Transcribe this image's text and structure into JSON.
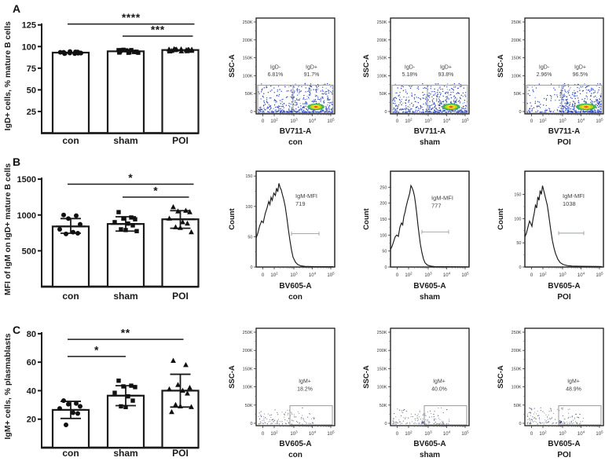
{
  "colors": {
    "axis": "#1a1a1a",
    "bar_fill": "#ffffff",
    "bar_stroke": "#1a1a1a",
    "marker": "#111111",
    "gate": "#9a9a9a",
    "gate_text": "#3f3f3f",
    "hist_line": "#1a1a1a",
    "range_marker": "#9aa0a6",
    "dot_palette": [
      "#2a3fae",
      "#3f5bc9",
      "#6b85dd",
      "#8fa6e8"
    ],
    "sparse_palette": [
      "#9a9a9a",
      "#6a6f85",
      "#3a4a9e"
    ],
    "hot_scatter": [
      "#2a3fae",
      "#2f9fbf",
      "#35b54a",
      "#7cc93c"
    ],
    "hot_rings": [
      "#2fae4e",
      "#b8d514",
      "#f4e11c",
      "#f59a23",
      "#e0301e"
    ]
  },
  "panels": [
    {
      "letter": "A"
    },
    {
      "letter": "B"
    },
    {
      "letter": "C"
    }
  ],
  "chart_data": [
    {
      "id": "A-bar",
      "row": "A",
      "type": "bar",
      "title": "",
      "xlabel": "",
      "ylabel": "IgD+ cells, % mature B cells",
      "categories": [
        "con",
        "sham",
        "POI"
      ],
      "values": [
        93,
        94.5,
        96
      ],
      "markers": [
        "circle",
        "square",
        "triangle"
      ],
      "points_n": [
        14,
        16,
        16
      ],
      "points_spread": [
        [
          91.8,
          94.3
        ],
        [
          92.8,
          96.3
        ],
        [
          94.2,
          97.4
        ]
      ],
      "yticks": [
        25,
        50,
        75,
        100,
        125
      ],
      "ylim": [
        0,
        132
      ],
      "significance": [
        {
          "from": 0,
          "to": 2,
          "label": "****",
          "y": 126,
          "ext": 18
        },
        {
          "from": 1,
          "to": 2,
          "label": "***",
          "y": 112,
          "ext": 16
        }
      ],
      "seed": 5
    },
    {
      "id": "A-flow-0",
      "row": "A",
      "type": "flow_dot",
      "ylabel": "SSC-A",
      "xlabel": "BV711-A",
      "group": "con",
      "yticks": [
        "0",
        "50K",
        "100K",
        "150K",
        "200K",
        "250K"
      ],
      "xticks": [
        {
          "t": "0"
        },
        {
          "t": "10",
          "e": "2"
        },
        {
          "t": "10",
          "e": "3"
        },
        {
          "t": "10",
          "e": "4"
        },
        {
          "t": "10",
          "e": "5"
        }
      ],
      "gates": {
        "split": 0.47,
        "top": 0.3,
        "left_label": "IgD-",
        "left_value": "6.81%",
        "right_label": "IgD+",
        "right_value": "91.7%"
      },
      "band": {
        "n": 520,
        "left_frac": 0.36
      },
      "hotspot": {
        "cx": 0.76,
        "scale": 1.0
      },
      "seed": 11
    },
    {
      "id": "A-flow-1",
      "row": "A",
      "type": "flow_dot",
      "ylabel": "SSC-A",
      "xlabel": "BV711-A",
      "group": "sham",
      "yticks": [
        "0",
        "50K",
        "100K",
        "150K",
        "200K",
        "250K"
      ],
      "xticks": [
        {
          "t": "0"
        },
        {
          "t": "10",
          "e": "2"
        },
        {
          "t": "10",
          "e": "3"
        },
        {
          "t": "10",
          "e": "4"
        },
        {
          "t": "10",
          "e": "5"
        }
      ],
      "gates": {
        "split": 0.47,
        "top": 0.3,
        "left_label": "IgD-",
        "left_value": "5.18%",
        "right_label": "IgD+",
        "right_value": "93.8%"
      },
      "band": {
        "n": 520,
        "left_frac": 0.3
      },
      "hotspot": {
        "cx": 0.77,
        "scale": 1.05
      },
      "seed": 12
    },
    {
      "id": "A-flow-2",
      "row": "A",
      "type": "flow_dot",
      "ylabel": "SSC-A",
      "xlabel": "BV711-A",
      "group": "POI",
      "yticks": [
        "0",
        "50K",
        "100K",
        "150K",
        "200K",
        "250K"
      ],
      "xticks": [
        {
          "t": "0"
        },
        {
          "t": "10",
          "e": "2"
        },
        {
          "t": "10",
          "e": "3"
        },
        {
          "t": "10",
          "e": "4"
        },
        {
          "t": "10",
          "e": "5"
        }
      ],
      "gates": {
        "split": 0.47,
        "top": 0.3,
        "left_label": "IgD-",
        "left_value": "2.96%",
        "right_label": "IgD+",
        "right_value": "96.5%"
      },
      "band": {
        "n": 480,
        "left_frac": 0.22
      },
      "hotspot": {
        "cx": 0.78,
        "scale": 1.2
      },
      "seed": 13
    },
    {
      "id": "B-bar",
      "row": "B",
      "type": "bar",
      "title": "",
      "xlabel": "",
      "ylabel": "MFI of IgM on IgD+ mature B cells",
      "categories": [
        "con",
        "sham",
        "POI"
      ],
      "values": [
        840,
        875,
        940
      ],
      "error_low": [
        745,
        775,
        815
      ],
      "error_high": [
        950,
        975,
        1060
      ],
      "markers": [
        "circle",
        "square",
        "triangle"
      ],
      "points": [
        [
          1000,
          990,
          950,
          870,
          800,
          760,
          745,
          735
        ],
        [
          1040,
          965,
          950,
          940,
          900,
          880,
          855,
          800,
          790,
          775
        ],
        [
          1110,
          1060,
          1050,
          1040,
          950,
          900,
          880,
          830,
          820,
          760
        ]
      ],
      "yticks": [
        500,
        1000,
        1500
      ],
      "ylim": [
        0,
        1600
      ],
      "significance": [
        {
          "from": 0,
          "to": 2,
          "label": "*",
          "y": 1430,
          "ext": 17
        },
        {
          "from": 1,
          "to": 2,
          "label": "*",
          "y": 1250,
          "ext": 11
        }
      ],
      "seed": 6
    },
    {
      "id": "B-hist-0",
      "row": "B",
      "type": "flow_hist",
      "ylabel": "Count",
      "xlabel": "BV605-A",
      "group": "con",
      "yticks": [
        0,
        50,
        100,
        150
      ],
      "axis_max": 158,
      "xticks": [
        {
          "t": "0"
        },
        {
          "t": "10",
          "e": "2"
        },
        {
          "t": "10",
          "e": "3"
        },
        {
          "t": "10",
          "e": "4"
        },
        {
          "t": "10",
          "e": "5"
        }
      ],
      "annotation": [
        "IgM-MFI",
        "719"
      ],
      "ann": {
        "x": 0.5,
        "yf": 0.28
      },
      "range_marker": {
        "y": 55,
        "x1": 0.45,
        "x2": 0.8
      },
      "curve": [
        [
          0,
          48
        ],
        [
          0.02,
          55
        ],
        [
          0.045,
          68
        ],
        [
          0.07,
          76
        ],
        [
          0.09,
          73
        ],
        [
          0.115,
          88
        ],
        [
          0.14,
          98
        ],
        [
          0.16,
          108
        ],
        [
          0.175,
          103
        ],
        [
          0.19,
          115
        ],
        [
          0.205,
          110
        ],
        [
          0.225,
          122
        ],
        [
          0.245,
          118
        ],
        [
          0.26,
          130
        ],
        [
          0.275,
          124
        ],
        [
          0.29,
          138
        ],
        [
          0.305,
          131
        ],
        [
          0.32,
          127
        ],
        [
          0.335,
          119
        ],
        [
          0.35,
          112
        ],
        [
          0.37,
          100
        ],
        [
          0.39,
          82
        ],
        [
          0.41,
          62
        ],
        [
          0.43,
          44
        ],
        [
          0.45,
          28
        ],
        [
          0.47,
          16
        ],
        [
          0.5,
          8
        ],
        [
          0.53,
          4
        ],
        [
          0.57,
          2
        ],
        [
          0.62,
          1
        ],
        [
          0.75,
          0.5
        ],
        [
          0.98,
          0.5
        ]
      ]
    },
    {
      "id": "B-hist-1",
      "row": "B",
      "type": "flow_hist",
      "ylabel": "Count",
      "xlabel": "BV605-A",
      "group": "sham",
      "yticks": [
        0,
        50,
        100,
        150,
        200,
        250
      ],
      "axis_max": 300,
      "xticks": [
        {
          "t": "0"
        },
        {
          "t": "10",
          "e": "2"
        },
        {
          "t": "10",
          "e": "3"
        },
        {
          "t": "10",
          "e": "4"
        },
        {
          "t": "10",
          "e": "5"
        }
      ],
      "annotation": [
        "IgM-MFI",
        "777"
      ],
      "ann": {
        "x": 0.52,
        "yf": 0.3
      },
      "range_marker": {
        "y": 110,
        "x1": 0.4,
        "x2": 0.74
      },
      "curve": [
        [
          0,
          55
        ],
        [
          0.02,
          65
        ],
        [
          0.04,
          80
        ],
        [
          0.06,
          95
        ],
        [
          0.08,
          100
        ],
        [
          0.1,
          96
        ],
        [
          0.12,
          125
        ],
        [
          0.14,
          138
        ],
        [
          0.155,
          132
        ],
        [
          0.17,
          158
        ],
        [
          0.185,
          172
        ],
        [
          0.2,
          190
        ],
        [
          0.215,
          205
        ],
        [
          0.23,
          218
        ],
        [
          0.245,
          232
        ],
        [
          0.26,
          255
        ],
        [
          0.275,
          248
        ],
        [
          0.29,
          238
        ],
        [
          0.305,
          222
        ],
        [
          0.32,
          196
        ],
        [
          0.335,
          165
        ],
        [
          0.35,
          130
        ],
        [
          0.365,
          100
        ],
        [
          0.38,
          72
        ],
        [
          0.4,
          45
        ],
        [
          0.42,
          25
        ],
        [
          0.44,
          13
        ],
        [
          0.47,
          6
        ],
        [
          0.51,
          3
        ],
        [
          0.56,
          1.5
        ],
        [
          0.65,
          1
        ],
        [
          0.98,
          0.5
        ]
      ]
    },
    {
      "id": "B-hist-2",
      "row": "B",
      "type": "flow_hist",
      "ylabel": "Count",
      "xlabel": "BV605-A",
      "group": "POI",
      "yticks": [
        0,
        50,
        100,
        150
      ],
      "axis_max": 198,
      "xticks": [
        {
          "t": "0"
        },
        {
          "t": "10",
          "e": "2"
        },
        {
          "t": "10",
          "e": "3"
        },
        {
          "t": "10",
          "e": "4"
        },
        {
          "t": "10",
          "e": "5"
        }
      ],
      "annotation": [
        "IgM-MFI",
        "1038"
      ],
      "ann": {
        "x": 0.48,
        "yf": 0.28
      },
      "range_marker": {
        "y": 70,
        "x1": 0.43,
        "x2": 0.75
      },
      "curve": [
        [
          0,
          62
        ],
        [
          0.02,
          70
        ],
        [
          0.04,
          83
        ],
        [
          0.06,
          95
        ],
        [
          0.075,
          90
        ],
        [
          0.09,
          84
        ],
        [
          0.105,
          100
        ],
        [
          0.12,
          112
        ],
        [
          0.135,
          128
        ],
        [
          0.15,
          122
        ],
        [
          0.165,
          145
        ],
        [
          0.18,
          138
        ],
        [
          0.195,
          158
        ],
        [
          0.21,
          150
        ],
        [
          0.225,
          168
        ],
        [
          0.24,
          158
        ],
        [
          0.255,
          148
        ],
        [
          0.27,
          138
        ],
        [
          0.285,
          128
        ],
        [
          0.3,
          112
        ],
        [
          0.315,
          94
        ],
        [
          0.33,
          76
        ],
        [
          0.35,
          55
        ],
        [
          0.37,
          40
        ],
        [
          0.39,
          28
        ],
        [
          0.42,
          16
        ],
        [
          0.45,
          9
        ],
        [
          0.49,
          5
        ],
        [
          0.54,
          3
        ],
        [
          0.6,
          2
        ],
        [
          0.7,
          1.5
        ],
        [
          0.98,
          1
        ]
      ]
    },
    {
      "id": "C-bar",
      "row": "C",
      "type": "bar",
      "title": "",
      "xlabel": "",
      "ylabel": "IgM+ cells, % plasmablasts",
      "categories": [
        "con",
        "sham",
        "POI"
      ],
      "values": [
        26.5,
        36.5,
        40
      ],
      "error_low": [
        20.5,
        29.5,
        28.5
      ],
      "error_high": [
        32.5,
        43.5,
        51.5
      ],
      "markers": [
        "circle",
        "square",
        "triangle"
      ],
      "points": [
        [
          33,
          31,
          30.5,
          29,
          27.5,
          24.5,
          24,
          16
        ],
        [
          47,
          43.5,
          43,
          42.5,
          38.5,
          36,
          33,
          29,
          28.5
        ],
        [
          61,
          58,
          44,
          42,
          41,
          40,
          38,
          30,
          29,
          28.5,
          25
        ]
      ],
      "yticks": [
        20,
        40,
        60,
        80
      ],
      "ylim": [
        0,
        86
      ],
      "significance": [
        {
          "from": 0,
          "to": 2,
          "label": "**",
          "y": 76,
          "ext": 4
        },
        {
          "from": 0,
          "to": 1,
          "label": "*",
          "y": 64,
          "ext": 0
        }
      ],
      "seed": 7
    },
    {
      "id": "C-flow-0",
      "row": "C",
      "type": "flow_dot",
      "ylabel": "SSC-A",
      "xlabel": "BV605-A",
      "group": "con",
      "yticks": [
        "0",
        "50K",
        "100K",
        "150K",
        "200K",
        "250K"
      ],
      "xticks": [
        {
          "t": "0"
        },
        {
          "t": "10",
          "e": "2"
        },
        {
          "t": "10",
          "e": "3"
        },
        {
          "t": "10",
          "e": "4"
        },
        {
          "t": "10",
          "e": "5"
        }
      ],
      "gate_rect": {
        "x1": 0.43,
        "x2": 0.97,
        "top": 0.205
      },
      "label": "IgM+",
      "value": "18.2%",
      "sparse": {
        "n": 115
      },
      "seed": 21
    },
    {
      "id": "C-flow-1",
      "row": "C",
      "type": "flow_dot",
      "ylabel": "SSC-A",
      "xlabel": "BV605-A",
      "group": "sham",
      "yticks": [
        "0",
        "50K",
        "100K",
        "150K",
        "200K",
        "250K"
      ],
      "xticks": [
        {
          "t": "0"
        },
        {
          "t": "10",
          "e": "2"
        },
        {
          "t": "10",
          "e": "3"
        },
        {
          "t": "10",
          "e": "4"
        },
        {
          "t": "10",
          "e": "5"
        }
      ],
      "gate_rect": {
        "x1": 0.43,
        "x2": 0.97,
        "top": 0.205
      },
      "label": "IgM+",
      "value": "40.0%",
      "sparse": {
        "n": 130
      },
      "blob": {
        "cx": 0.42,
        "n": 20
      },
      "seed": 22
    },
    {
      "id": "C-flow-2",
      "row": "C",
      "type": "flow_dot",
      "ylabel": "SSC-A",
      "xlabel": "BV605-A",
      "group": "POI",
      "yticks": [
        "0",
        "50K",
        "100K",
        "150K",
        "200K",
        "250K"
      ],
      "xticks": [
        {
          "t": "0"
        },
        {
          "t": "10",
          "e": "2"
        },
        {
          "t": "10",
          "e": "3"
        },
        {
          "t": "10",
          "e": "4"
        },
        {
          "t": "10",
          "e": "5"
        }
      ],
      "gate_rect": {
        "x1": 0.43,
        "x2": 0.97,
        "top": 0.205
      },
      "label": "IgM+",
      "value": "48.9%",
      "sparse": {
        "n": 135
      },
      "blob": {
        "cx": 0.45,
        "n": 26
      },
      "seed": 23
    }
  ]
}
